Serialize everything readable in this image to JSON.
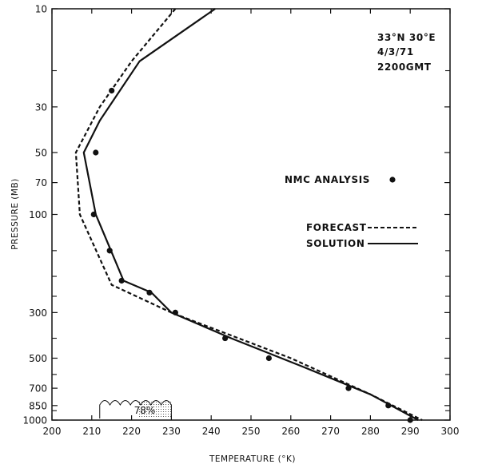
{
  "chart_data": {
    "type": "line",
    "xlabel": "TEMPERATURE (°K)",
    "ylabel": "PRESSURE (MB)",
    "xlim": [
      200,
      300
    ],
    "ylim": [
      1000,
      10
    ],
    "y_scale": "log-pressure",
    "x_ticks": [
      "200",
      "210",
      "220",
      "230",
      "240",
      "250",
      "260",
      "270",
      "280",
      "290",
      "300"
    ],
    "y_tick_labels": [
      "10",
      "30",
      "50",
      "70",
      "100",
      "300",
      "500",
      "700",
      "850",
      "1000"
    ],
    "y_tick_values": [
      10,
      30,
      50,
      70,
      100,
      300,
      500,
      700,
      850,
      1000
    ],
    "y_minor_ticks": [
      20,
      150,
      200,
      250,
      400,
      600,
      900
    ],
    "annotation": [
      "33°N 30°E",
      "4/3/71",
      "2200GMT"
    ],
    "cloud_label": "78%",
    "cloud_range": [
      212,
      230
    ],
    "series": [
      {
        "name": "FORECAST",
        "style": "dashed",
        "points": [
          [
            231,
            10
          ],
          [
            220,
            18
          ],
          [
            212,
            30
          ],
          [
            206,
            50
          ],
          [
            207,
            100
          ],
          [
            215,
            220
          ],
          [
            230,
            300
          ],
          [
            260,
            500
          ],
          [
            280,
            750
          ],
          [
            293,
            1000
          ]
        ]
      },
      {
        "name": "SOLUTION",
        "style": "solid",
        "points": [
          [
            241,
            10
          ],
          [
            222,
            18
          ],
          [
            212,
            35
          ],
          [
            208,
            50
          ],
          [
            211,
            100
          ],
          [
            216,
            170
          ],
          [
            218,
            210
          ],
          [
            225,
            240
          ],
          [
            230,
            300
          ],
          [
            245,
            400
          ],
          [
            263,
            550
          ],
          [
            280,
            750
          ],
          [
            292,
            1000
          ]
        ]
      },
      {
        "name": "NMC ANALYSIS",
        "style": "points",
        "points": [
          [
            215,
            25
          ],
          [
            211,
            50
          ],
          [
            210.5,
            100
          ],
          [
            214.5,
            150
          ],
          [
            217.5,
            210
          ],
          [
            224.5,
            240
          ],
          [
            231,
            300
          ],
          [
            243.5,
            400
          ],
          [
            254.5,
            500
          ],
          [
            274.5,
            700
          ],
          [
            284.5,
            850
          ],
          [
            290,
            1000
          ]
        ]
      }
    ]
  }
}
